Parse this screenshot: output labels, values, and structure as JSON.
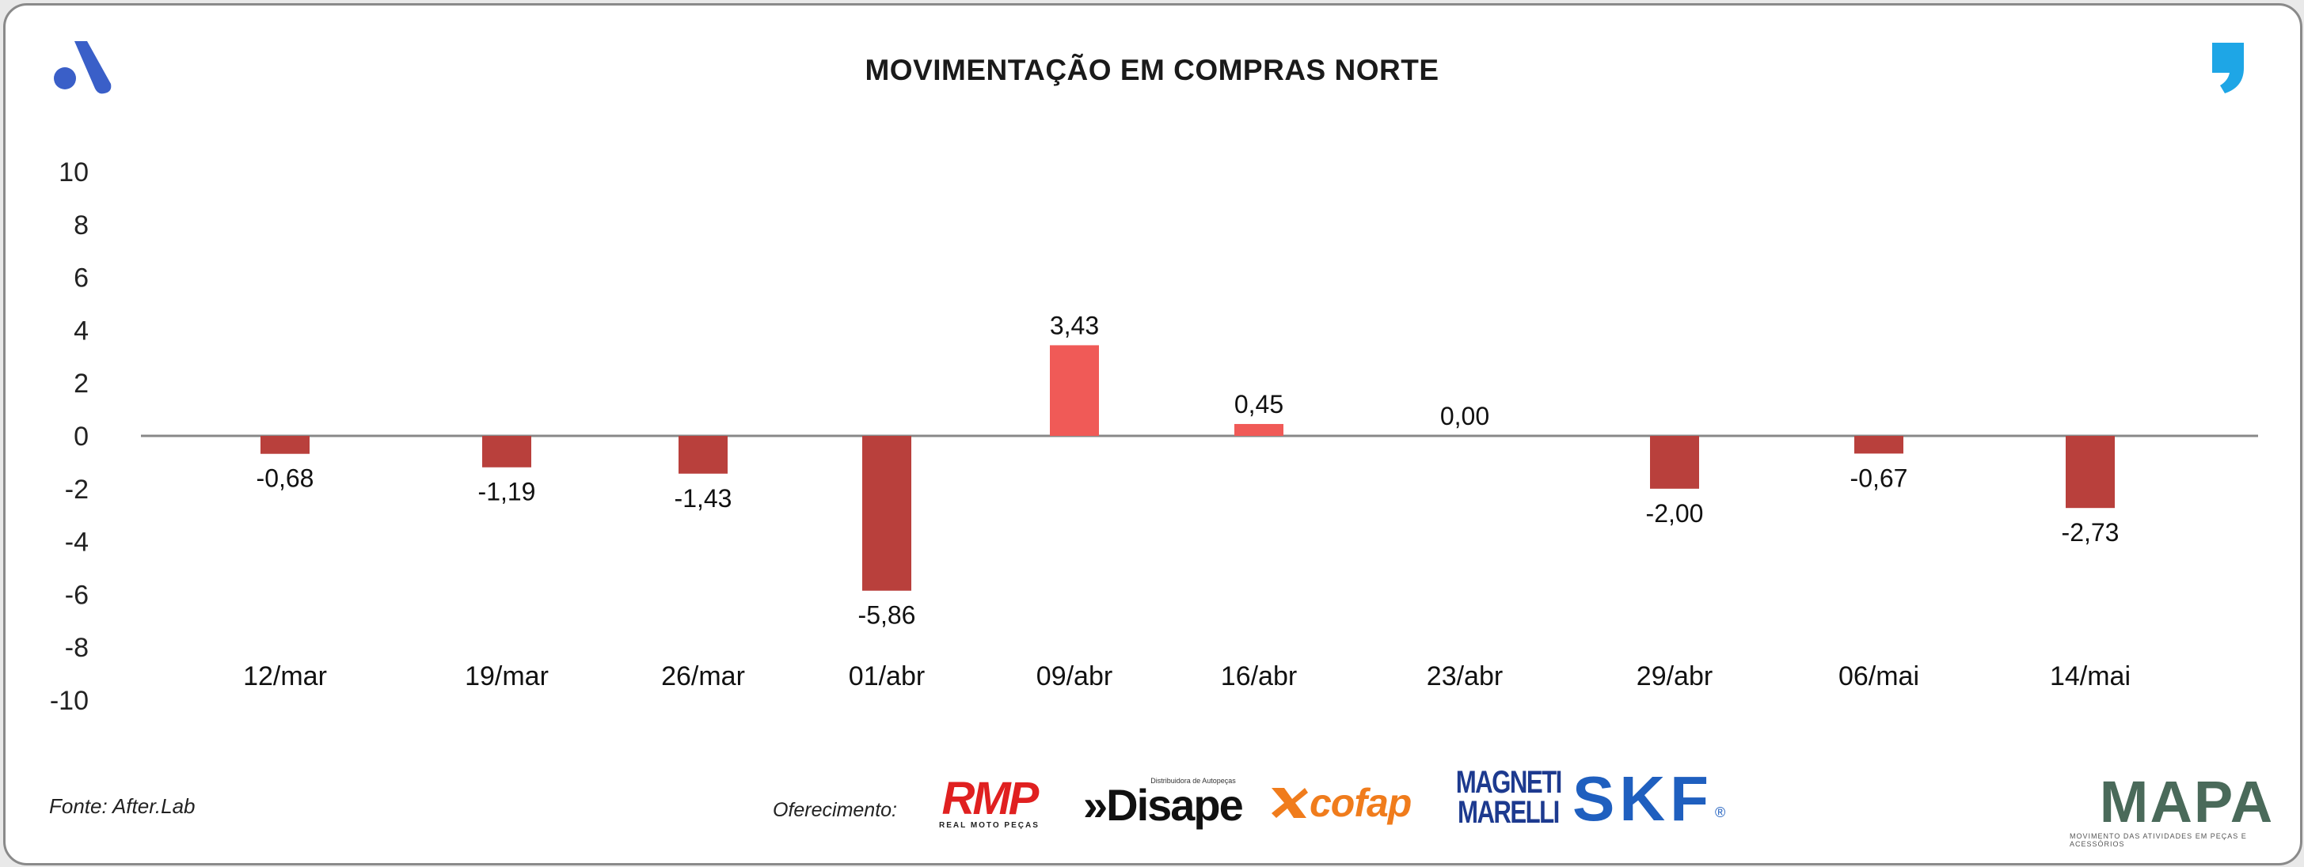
{
  "header": {
    "title": "MOVIMENTAÇÃO EM COMPRAS NORTE"
  },
  "footer": {
    "source": "Fonte: After.Lab",
    "sponsored_label": "Oferecimento:"
  },
  "sponsors": {
    "rmp": {
      "name": "RMP",
      "tagline": "REAL MOTO PEÇAS"
    },
    "disape": {
      "name": "»Disape",
      "tagline": "Distribuidora de Autopeças"
    },
    "cofap": {
      "name": "cofap"
    },
    "magneti_marelli": {
      "line1": "MAGNETI",
      "line2": "MARELLI"
    },
    "skf": {
      "name": "SKF",
      "reg": "®"
    },
    "mapa": {
      "name": "MAPA",
      "tagline": "MOVIMENTO DAS ATIVIDADES EM PEÇAS E ACESSÓRIOS"
    }
  },
  "colors": {
    "negative_bar": "#b9403c",
    "positive_bar": "#f05a57",
    "axis_line": "#888888",
    "brand_blue": "#3a5fc8",
    "quote_blue": "#1ea6e6"
  },
  "chart_data": {
    "type": "bar",
    "title": "MOVIMENTAÇÃO EM COMPRAS NORTE",
    "categories": [
      "12/mar",
      "19/mar",
      "26/mar",
      "01/abr",
      "09/abr",
      "16/abr",
      "23/abr",
      "29/abr",
      "06/mai",
      "14/mai"
    ],
    "values": [
      -0.68,
      -1.19,
      -1.43,
      -5.86,
      3.43,
      0.45,
      0.0,
      -2.0,
      -0.67,
      -2.73
    ],
    "data_labels": [
      "-0,68",
      "-1,19",
      "-1,43",
      "-5,86",
      "3,43",
      "0,45",
      "0,00",
      "-2,00",
      "-0,67",
      "-2,73"
    ],
    "ylim": [
      -10,
      10
    ],
    "yticks": [
      10,
      8,
      6,
      4,
      2,
      0,
      -2,
      -4,
      -6,
      -8,
      -10
    ],
    "ytick_labels": [
      "10",
      "8",
      "6",
      "4",
      "2",
      "0",
      "-2",
      "-4",
      "-6",
      "-8",
      "-10"
    ],
    "xlabel": "",
    "ylabel": "",
    "grid": false,
    "legend": "none"
  }
}
